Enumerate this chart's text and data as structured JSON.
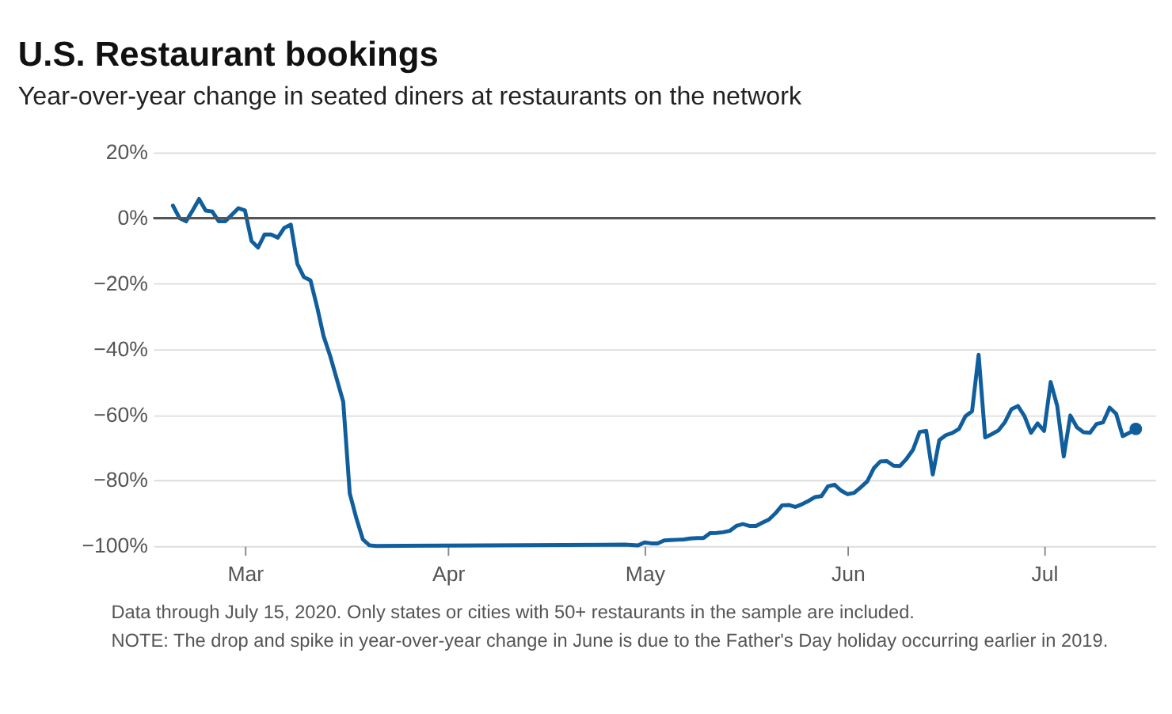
{
  "chart_data": {
    "type": "line",
    "title": "U.S. Restaurant bookings",
    "subtitle": "Year-over-year change in seated diners at restaurants on the network",
    "x": [
      "2020-02-19",
      "2020-02-20",
      "2020-02-21",
      "2020-02-22",
      "2020-02-23",
      "2020-02-24",
      "2020-02-25",
      "2020-02-26",
      "2020-02-27",
      "2020-02-28",
      "2020-02-29",
      "2020-03-01",
      "2020-03-02",
      "2020-03-03",
      "2020-03-04",
      "2020-03-05",
      "2020-03-06",
      "2020-03-07",
      "2020-03-08",
      "2020-03-09",
      "2020-03-10",
      "2020-03-11",
      "2020-03-12",
      "2020-03-13",
      "2020-03-14",
      "2020-03-15",
      "2020-03-16",
      "2020-03-17",
      "2020-03-18",
      "2020-03-19",
      "2020-03-20",
      "2020-03-21",
      "2020-04-28",
      "2020-04-30",
      "2020-05-01",
      "2020-05-02",
      "2020-05-03",
      "2020-05-04",
      "2020-05-05",
      "2020-05-06",
      "2020-05-07",
      "2020-05-08",
      "2020-05-09",
      "2020-05-10",
      "2020-05-11",
      "2020-05-12",
      "2020-05-13",
      "2020-05-14",
      "2020-05-15",
      "2020-05-16",
      "2020-05-17",
      "2020-05-18",
      "2020-05-19",
      "2020-05-20",
      "2020-05-21",
      "2020-05-22",
      "2020-05-23",
      "2020-05-24",
      "2020-05-25",
      "2020-05-26",
      "2020-05-27",
      "2020-05-28",
      "2020-05-29",
      "2020-05-30",
      "2020-05-31",
      "2020-06-01",
      "2020-06-02",
      "2020-06-03",
      "2020-06-04",
      "2020-06-05",
      "2020-06-06",
      "2020-06-07",
      "2020-06-08",
      "2020-06-09",
      "2020-06-10",
      "2020-06-11",
      "2020-06-12",
      "2020-06-13",
      "2020-06-14",
      "2020-06-15",
      "2020-06-16",
      "2020-06-17",
      "2020-06-18",
      "2020-06-19",
      "2020-06-20",
      "2020-06-21",
      "2020-06-22",
      "2020-06-23",
      "2020-06-24",
      "2020-06-25",
      "2020-06-26",
      "2020-06-27",
      "2020-06-28",
      "2020-06-29",
      "2020-06-30",
      "2020-07-01",
      "2020-07-02",
      "2020-07-03",
      "2020-07-04",
      "2020-07-05",
      "2020-07-06",
      "2020-07-07",
      "2020-07-08",
      "2020-07-09",
      "2020-07-10",
      "2020-07-11",
      "2020-07-12",
      "2020-07-13",
      "2020-07-14",
      "2020-07-15"
    ],
    "series": [
      {
        "marker": "none",
        "color": "#115e9c",
        "values": [
          3.8,
          0,
          -1,
          2.3,
          5.8,
          2.3,
          2,
          -1,
          -1,
          1,
          3,
          2.3,
          -7,
          -9,
          -5,
          -5,
          -6,
          -3,
          -2,
          -14,
          -18,
          -19,
          -27,
          -36,
          -42,
          -49,
          -56,
          -84,
          -91.5,
          -98,
          -99.8,
          -100,
          -99.6,
          -99.8,
          -98.9,
          -99.2,
          -99.2,
          -98.3,
          -98.2,
          -98.1,
          -98,
          -97.7,
          -97.6,
          -97.6,
          -96.1,
          -96,
          -95.8,
          -95.4,
          -93.9,
          -93.3,
          -93.9,
          -93.9,
          -92.9,
          -91.9,
          -90,
          -87.6,
          -87.5,
          -88.1,
          -87.3,
          -86.3,
          -85.1,
          -84.8,
          -81.8,
          -81.3,
          -83.1,
          -84.2,
          -83.8,
          -82.1,
          -80.3,
          -76.3,
          -74.2,
          -74.1,
          -75.5,
          -75.6,
          -73.4,
          -70.6,
          -65.2,
          -64.9,
          -78.2,
          -67.7,
          -66.2,
          -65.5,
          -64.3,
          -60.4,
          -58.9,
          -41.7,
          -66.9,
          -65.9,
          -64.8,
          -62.3,
          -58.3,
          -57.3,
          -60.4,
          -65.5,
          -62.6,
          -64.9,
          -50,
          -57.3,
          -72.7,
          -60.2,
          -63.8,
          -65.3,
          -65.5,
          -62.8,
          -62.3,
          -57.8,
          -59.7,
          -66.5,
          -65.5,
          -64.3
        ]
      },
      {
        "type": "scatter",
        "marker": "circle",
        "color": "#115e9c",
        "x": [
          "2020-07-15"
        ],
        "values": [
          -64.3
        ]
      }
    ],
    "line_style": "solid",
    "grid": "y",
    "xlim": [
      "2020-02-16",
      "2020-07-18"
    ],
    "xticks": [
      {
        "value": "2020-03-01",
        "label": "Mar"
      },
      {
        "value": "2020-04-01",
        "label": "Apr"
      },
      {
        "value": "2020-05-01",
        "label": "May"
      },
      {
        "value": "2020-06-01",
        "label": "Jun"
      },
      {
        "value": "2020-07-01",
        "label": "Jul"
      }
    ],
    "ylim": [
      -100,
      20
    ],
    "yticks": [
      {
        "value": -100,
        "label": "−100%"
      },
      {
        "value": -80,
        "label": "−80%"
      },
      {
        "value": -60,
        "label": "−60%"
      },
      {
        "value": -40,
        "label": "−40%"
      },
      {
        "value": -20,
        "label": "−20%"
      },
      {
        "value": 0,
        "label": "0%"
      },
      {
        "value": 20,
        "label": "20%"
      }
    ],
    "ref_lines": [
      {
        "axis": "y",
        "value": 0,
        "color": "#555555"
      }
    ],
    "annotations": [
      "Data through July 15, 2020. Only states or cities with 50+ restaurants in the sample are included.",
      "NOTE: The drop and spike in year-over-year change in June is due to the Father's Day holiday occurring earlier in 2019."
    ]
  }
}
